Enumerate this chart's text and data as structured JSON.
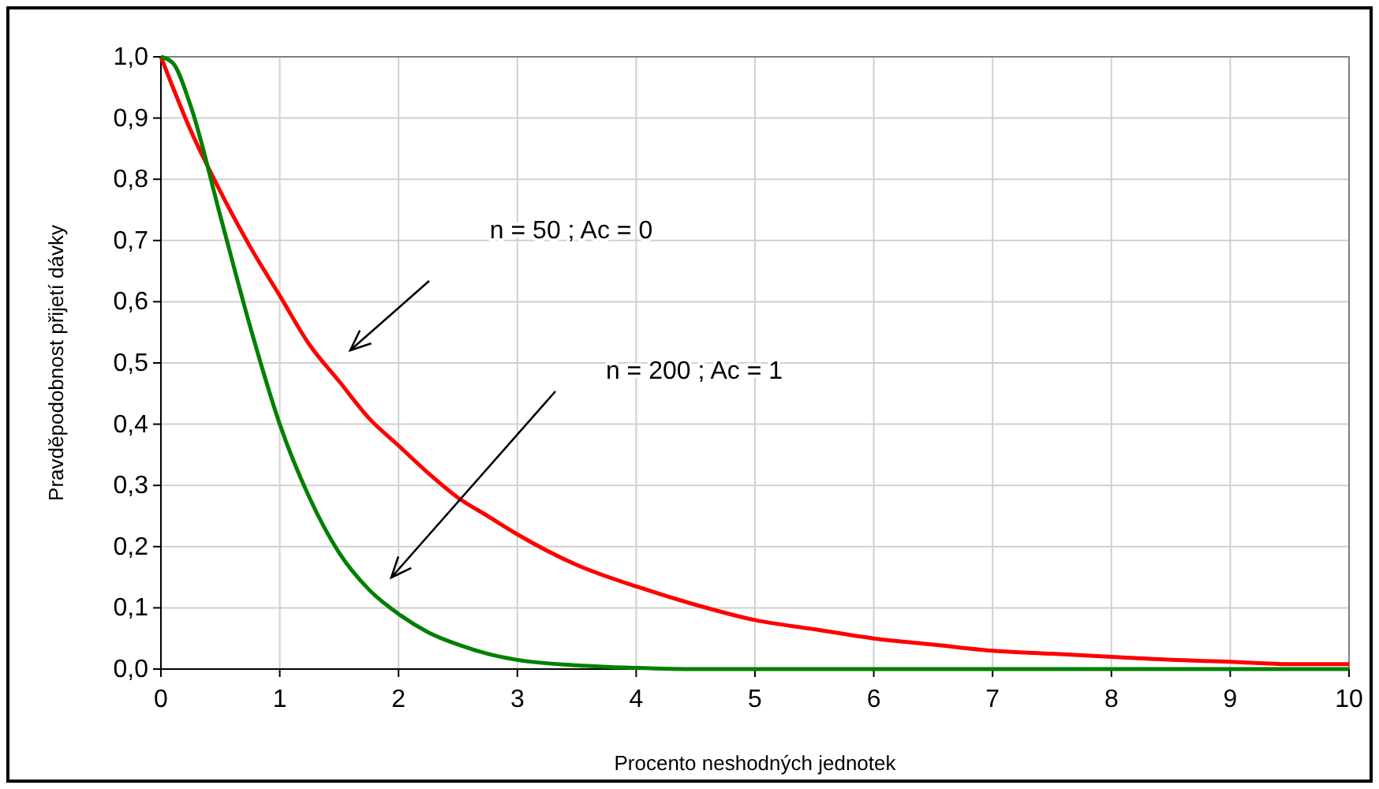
{
  "chart_data": {
    "type": "line",
    "xlabel": "Procento neshodných jednotek",
    "ylabel": "Pravděpodobnost přijetí dávky",
    "xlim": [
      0,
      10
    ],
    "ylim": [
      0,
      1
    ],
    "xticks": [
      0,
      1,
      2,
      3,
      4,
      5,
      6,
      7,
      8,
      9,
      10
    ],
    "yticks": [
      {
        "value": 0,
        "label": "0,0"
      },
      {
        "value": 0.1,
        "label": "0,1"
      },
      {
        "value": 0.2,
        "label": "0,2"
      },
      {
        "value": 0.3,
        "label": "0,3"
      },
      {
        "value": 0.4,
        "label": "0,4"
      },
      {
        "value": 0.5,
        "label": "0,5"
      },
      {
        "value": 0.6,
        "label": "0,6"
      },
      {
        "value": 0.7,
        "label": "0,7"
      },
      {
        "value": 0.8,
        "label": "0,8"
      },
      {
        "value": 0.9,
        "label": "0,9"
      },
      {
        "value": 1,
        "label": "1,0"
      }
    ],
    "grid": true,
    "marker": "none",
    "line_style": "solid",
    "series": [
      {
        "color": "#ff0000",
        "x": [
          0,
          0.25,
          0.5,
          0.75,
          1,
          1.25,
          1.5,
          1.75,
          2,
          2.25,
          2.5,
          2.75,
          3,
          3.5,
          4,
          4.5,
          5,
          5.5,
          6,
          6.5,
          7,
          7.5,
          8,
          8.5,
          9,
          9.5,
          10
        ],
        "values": [
          1,
          0.88,
          0.78,
          0.69,
          0.61,
          0.53,
          0.47,
          0.41,
          0.365,
          0.32,
          0.28,
          0.25,
          0.22,
          0.17,
          0.135,
          0.105,
          0.08,
          0.065,
          0.05,
          0.04,
          0.03,
          0.025,
          0.02,
          0.015,
          0.012,
          0.008,
          0.008
        ]
      },
      {
        "color": "#008000",
        "x": [
          0,
          0.1,
          0.25,
          0.5,
          0.75,
          1,
          1.25,
          1.5,
          1.75,
          2,
          2.25,
          2.5,
          2.75,
          3,
          3.5,
          4,
          4.5,
          10
        ],
        "values": [
          1,
          0.99,
          0.92,
          0.74,
          0.56,
          0.4,
          0.28,
          0.19,
          0.13,
          0.09,
          0.06,
          0.04,
          0.025,
          0.015,
          0.006,
          0.002,
          0,
          0
        ]
      }
    ],
    "annotations": [
      "n = 50 ; Ac = 0",
      "n = 200 ; Ac = 1"
    ]
  }
}
